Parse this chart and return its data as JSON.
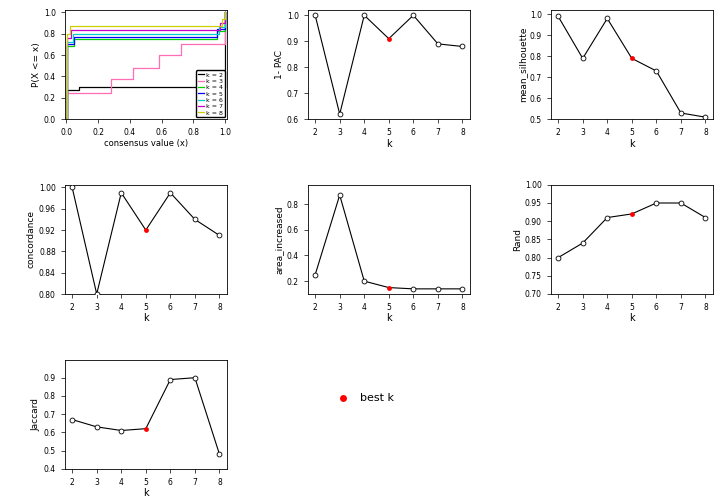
{
  "k_values": [
    2,
    3,
    4,
    5,
    6,
    7,
    8
  ],
  "best_k": 5,
  "pac_1minus": [
    1.0,
    0.62,
    1.0,
    0.91,
    1.0,
    0.89,
    0.88
  ],
  "mean_silhouette": [
    0.99,
    0.79,
    0.98,
    0.79,
    0.73,
    0.53,
    0.51
  ],
  "concordance": [
    1.0,
    0.8,
    0.99,
    0.92,
    0.99,
    0.94,
    0.91
  ],
  "area_increased": [
    0.25,
    0.87,
    0.2,
    0.15,
    0.14,
    0.14,
    0.14
  ],
  "rand": [
    0.8,
    0.84,
    0.91,
    0.92,
    0.95,
    0.95,
    0.91
  ],
  "jaccard": [
    0.67,
    0.63,
    0.61,
    0.62,
    0.89,
    0.9,
    0.48
  ],
  "ecdf_colors": [
    "#000000",
    "#FF6EB4",
    "#00CD00",
    "#0000FF",
    "#00CDCD",
    "#CD00CD",
    "#CDCD00"
  ],
  "legend_labels": [
    "k = 2",
    "k = 3",
    "k = 4",
    "k = 5",
    "k = 6",
    "k = 7",
    "k = 8"
  ],
  "bg_color": "#FFFFFF"
}
